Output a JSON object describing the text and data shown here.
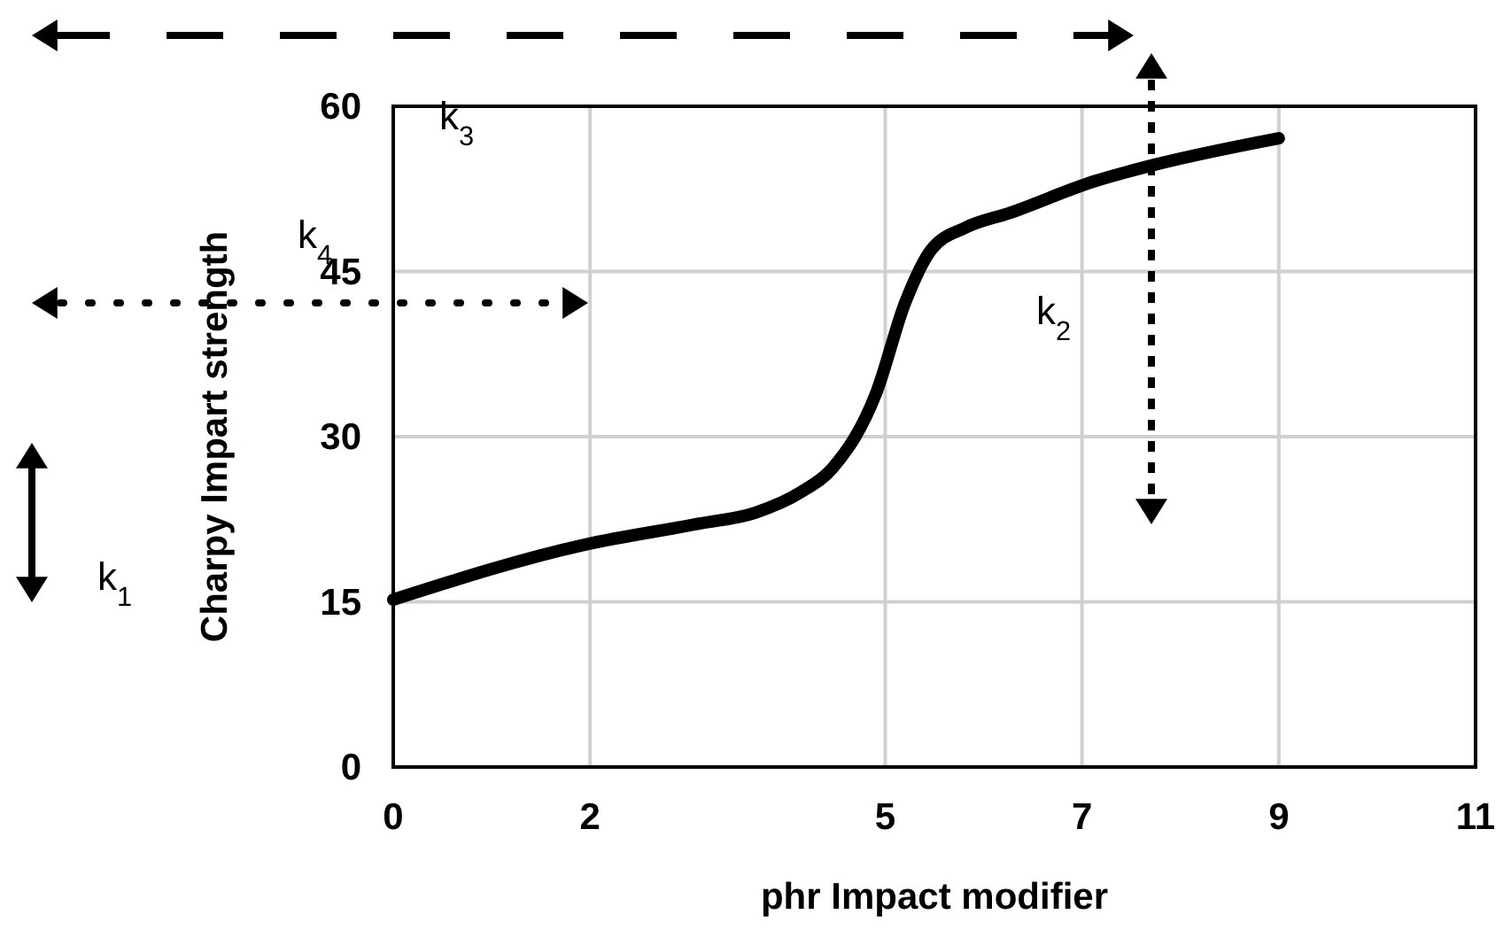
{
  "chart_data": {
    "type": "line",
    "xlabel": "phr Impact modifier",
    "ylabel": "Charpy Impart strength",
    "x": [
      0,
      1.95,
      3.11,
      3.68,
      4.15,
      4.46,
      4.91,
      5.2,
      5.47,
      5.82,
      6.26,
      7.13,
      7.74,
      9
    ],
    "series": [
      {
        "color": "#000000",
        "values": [
          15.2,
          20.2,
          22.1,
          23.1,
          25,
          27.1,
          34,
          42.1,
          47,
          49,
          50.3,
          53.2,
          54.7,
          57.1
        ]
      }
    ],
    "xlim": [
      0,
      11
    ],
    "xticks": [
      0,
      2,
      5,
      7,
      9,
      11
    ],
    "ylim": [
      0,
      60
    ],
    "yticks": [
      0,
      15,
      30,
      45,
      60
    ],
    "grid": true,
    "marker": "none",
    "line_style": "solid",
    "annotations": [
      "k$_{1}$",
      "k$_{2}$",
      "k$_{3}$",
      "k$_{4}$"
    ]
  }
}
